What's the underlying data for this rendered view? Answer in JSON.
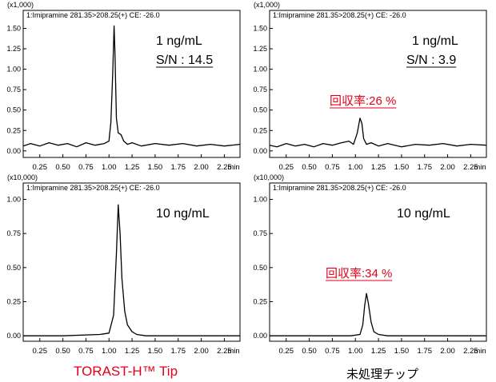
{
  "chart_data": [
    {
      "type": "line",
      "trace": "1:Imipramine 281.35>208.25(+) CE: -26.0",
      "scale": "(x1,000)",
      "yticks": [
        "0.00",
        "0.25",
        "0.50",
        "0.75",
        "1.00",
        "1.25",
        "1.50"
      ],
      "xticks": [
        "0.25",
        "0.50",
        "0.75",
        "1.00",
        "1.25",
        "1.50",
        "1.75",
        "2.00",
        "2.25"
      ],
      "xunit": "min",
      "xlim": [
        0.07,
        2.42
      ],
      "ylim": [
        -0.08,
        1.72
      ],
      "annotations": [
        "1 ng/mL",
        "S/N : 14.5"
      ],
      "series": [
        {
          "x": [
            0.07,
            0.15,
            0.25,
            0.35,
            0.45,
            0.55,
            0.65,
            0.75,
            0.85,
            0.95,
            1.0,
            1.02,
            1.04,
            1.055,
            1.065,
            1.08,
            1.1,
            1.13,
            1.16,
            1.2,
            1.25,
            1.35,
            1.5,
            1.65,
            1.8,
            1.95,
            2.1,
            2.25,
            2.42
          ],
          "y": [
            0.06,
            0.09,
            0.06,
            0.1,
            0.07,
            0.09,
            0.05,
            0.1,
            0.07,
            0.09,
            0.12,
            0.35,
            0.95,
            1.53,
            1.2,
            0.4,
            0.22,
            0.2,
            0.12,
            0.08,
            0.1,
            0.06,
            0.09,
            0.07,
            0.09,
            0.06,
            0.08,
            0.06,
            0.08
          ]
        }
      ]
    },
    {
      "type": "line",
      "trace": "1:Imipramine 281.35>208.25(+) CE: -26.0",
      "scale": "(x1,000)",
      "yticks": [
        "0.00",
        "0.25",
        "0.50",
        "0.75",
        "1.00",
        "1.25",
        "1.50"
      ],
      "xticks": [
        "0.25",
        "0.50",
        "0.75",
        "1.00",
        "1.25",
        "1.50",
        "1.75",
        "2.00",
        "2.25"
      ],
      "xunit": "min",
      "xlim": [
        0.07,
        2.42
      ],
      "ylim": [
        -0.08,
        1.72
      ],
      "annotations": [
        "1 ng/mL",
        "S/N : 3.9",
        "回収率:26 %"
      ],
      "series": [
        {
          "x": [
            0.07,
            0.15,
            0.25,
            0.35,
            0.45,
            0.55,
            0.65,
            0.75,
            0.85,
            0.93,
            0.98,
            1.02,
            1.05,
            1.07,
            1.09,
            1.12,
            1.17,
            1.25,
            1.35,
            1.5,
            1.65,
            1.8,
            1.95,
            2.1,
            2.25,
            2.42
          ],
          "y": [
            0.07,
            0.05,
            0.09,
            0.06,
            0.08,
            0.05,
            0.09,
            0.07,
            0.1,
            0.12,
            0.08,
            0.22,
            0.4,
            0.34,
            0.15,
            0.08,
            0.1,
            0.06,
            0.09,
            0.05,
            0.08,
            0.07,
            0.09,
            0.06,
            0.08,
            0.07
          ]
        }
      ]
    },
    {
      "type": "line",
      "trace": "1:Imipramine 281.35>208.25(+) CE: -26.0",
      "scale": "(x10,000)",
      "yticks": [
        "0.00",
        "0.25",
        "0.50",
        "0.75",
        "1.00"
      ],
      "xticks": [
        "0.25",
        "0.50",
        "0.75",
        "1.00",
        "1.25",
        "1.50",
        "1.75",
        "2.00",
        "2.25"
      ],
      "xunit": "min",
      "xlim": [
        0.07,
        2.42
      ],
      "ylim": [
        -0.04,
        1.12
      ],
      "annotations": [
        "10 ng/mL"
      ],
      "series": [
        {
          "x": [
            0.07,
            0.5,
            0.9,
            1.0,
            1.05,
            1.08,
            1.1,
            1.12,
            1.14,
            1.17,
            1.2,
            1.25,
            1.3,
            1.4,
            1.6,
            2.0,
            2.42
          ],
          "y": [
            0.0,
            0.0,
            0.01,
            0.02,
            0.15,
            0.6,
            0.96,
            0.75,
            0.42,
            0.18,
            0.08,
            0.03,
            0.01,
            0.0,
            0.0,
            0.0,
            0.0
          ]
        }
      ]
    },
    {
      "type": "line",
      "trace": "1:Imipramine 281.35>208.25(+) CE: -26.0",
      "scale": "(x10,000)",
      "yticks": [
        "0.00",
        "0.25",
        "0.50",
        "0.75",
        "1.00"
      ],
      "xticks": [
        "0.25",
        "0.50",
        "0.75",
        "1.00",
        "1.25",
        "1.50",
        "1.75",
        "2.00",
        "2.25"
      ],
      "xunit": "min",
      "xlim": [
        0.07,
        2.42
      ],
      "ylim": [
        -0.04,
        1.12
      ],
      "annotations": [
        "10 ng/mL",
        "回収率:34 %"
      ],
      "series": [
        {
          "x": [
            0.07,
            0.5,
            0.95,
            1.05,
            1.08,
            1.1,
            1.12,
            1.14,
            1.17,
            1.2,
            1.25,
            1.35,
            1.6,
            2.0,
            2.42
          ],
          "y": [
            0.0,
            0.0,
            0.0,
            0.01,
            0.08,
            0.22,
            0.31,
            0.24,
            0.1,
            0.03,
            0.01,
            0.0,
            0.0,
            0.0,
            0.0
          ]
        }
      ]
    }
  ],
  "captions": {
    "left": "TORAST-H™ Tip",
    "right": "未処理チップ"
  },
  "colors": {
    "line": "#000000",
    "recovery_text": "#e0001b",
    "caption_left": "#e0001b",
    "caption_right": "#000000"
  }
}
